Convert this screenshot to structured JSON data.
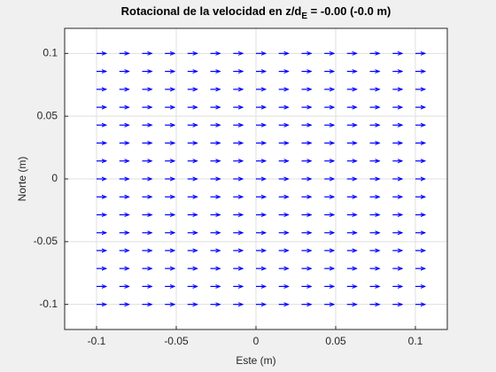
{
  "chart_data": {
    "type": "quiver",
    "title": {
      "main": "Rotacional de la velocidad en z/d",
      "sub": "E",
      "tail": " = -0.00 (-0.0 m)"
    },
    "x_label": "Este (m)",
    "y_label": "Norte (m)",
    "x": [
      -0.1,
      -0.0857,
      -0.0714,
      -0.0571,
      -0.0429,
      -0.0286,
      -0.0143,
      0,
      0.0143,
      0.0286,
      0.0429,
      0.0571,
      0.0714,
      0.0857,
      0.1
    ],
    "y": [
      -0.1,
      -0.0857,
      -0.0714,
      -0.0571,
      -0.0429,
      -0.0286,
      -0.0143,
      0,
      0.0143,
      0.0286,
      0.0429,
      0.0571,
      0.0714,
      0.0857,
      0.1
    ],
    "u": 0.006,
    "v": 0,
    "color": "#0000ff",
    "xlim": [
      -0.12,
      0.12
    ],
    "ylim": [
      -0.12,
      0.12
    ],
    "xticks": [
      -0.1,
      -0.05,
      0,
      0.05,
      0.1
    ],
    "yticks": [
      -0.1,
      -0.05,
      0,
      0.05,
      0.1
    ],
    "grid": true
  }
}
